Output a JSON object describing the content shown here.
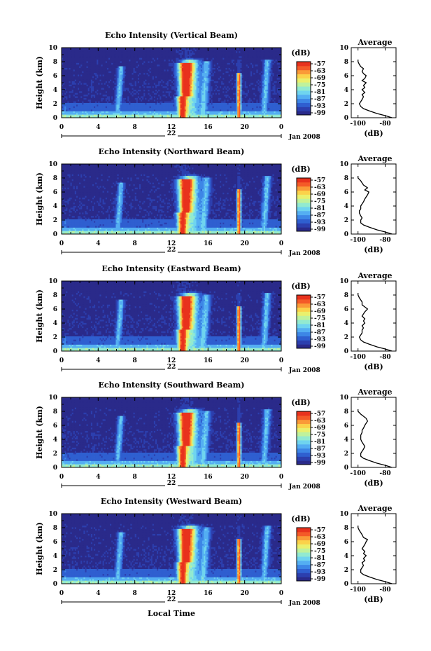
{
  "colormap": [
    "#2a2a8a",
    "#2c3fae",
    "#2f5fd0",
    "#3d86e6",
    "#54aef2",
    "#6fd4ef",
    "#92ead0",
    "#bff29c",
    "#eaf06c",
    "#fbd24a",
    "#fa9a38",
    "#f45a28",
    "#e8321d"
  ],
  "chart_data": [
    {
      "type": "heatmap",
      "title": "Echo Intensity (Vertical Beam)",
      "xlabel": "",
      "ylabel": "Height (km)",
      "x_ticks": [
        "0",
        "4",
        "8",
        "12",
        "16",
        "20",
        "0"
      ],
      "y_ticks": [
        "0",
        "2",
        "4",
        "6",
        "8",
        "10"
      ],
      "date_label": "22",
      "date_suffix": "Jan 2008",
      "colorbar_label": "(dB)",
      "colorbar_ticks": [
        "-57",
        "-63",
        "-69",
        "-75",
        "-81",
        "-87",
        "-93",
        "-99"
      ],
      "avg": {
        "title": "Average",
        "xlabel": "(dB)",
        "x_ticks": [
          "-100",
          "-80"
        ],
        "y_ticks": [
          "0",
          "2",
          "4",
          "6",
          "8",
          "10"
        ],
        "xlim": [
          -105,
          -72
        ],
        "profile_h": [
          0,
          0.3,
          0.6,
          1,
          1.3,
          1.6,
          2,
          2.3,
          2.6,
          3,
          3.3,
          3.6,
          4,
          4.3,
          4.6,
          5,
          5.3,
          5.6,
          6,
          6.3,
          6.6,
          7,
          7.3,
          7.6,
          8,
          8.3
        ],
        "profile_db": [
          -75,
          -80,
          -86,
          -92,
          -96,
          -98,
          -99,
          -98,
          -97,
          -96,
          -97,
          -95,
          -97,
          -95,
          -96,
          -94,
          -97,
          -95,
          -94,
          -96,
          -97,
          -96,
          -98,
          -99,
          -100,
          -100
        ]
      }
    },
    {
      "type": "heatmap",
      "title": "Echo Intensity (Northward Beam)",
      "xlabel": "",
      "ylabel": "Height (km)",
      "x_ticks": [
        "0",
        "4",
        "8",
        "12",
        "16",
        "20",
        "0"
      ],
      "y_ticks": [
        "0",
        "2",
        "4",
        "6",
        "8",
        "10"
      ],
      "date_label": "22",
      "date_suffix": "Jan 2008",
      "colorbar_label": "(dB)",
      "colorbar_ticks": [
        "-57",
        "-63",
        "-69",
        "-75",
        "-81",
        "-87",
        "-93",
        "-99"
      ],
      "avg": {
        "title": "Average",
        "xlabel": "(dB)",
        "x_ticks": [
          "-100",
          "-80"
        ],
        "y_ticks": [
          "0",
          "2",
          "4",
          "6",
          "8",
          "10"
        ],
        "xlim": [
          -105,
          -72
        ],
        "profile_h": [
          0,
          0.3,
          0.6,
          1,
          1.3,
          1.6,
          2,
          2.3,
          2.6,
          3,
          3.3,
          3.6,
          4,
          4.3,
          4.6,
          5,
          5.3,
          5.6,
          6,
          6.3,
          6.6,
          7,
          7.3,
          7.6,
          8,
          8.3
        ],
        "profile_db": [
          -75,
          -80,
          -86,
          -92,
          -96,
          -98,
          -98,
          -97,
          -98,
          -99,
          -99,
          -98,
          -98,
          -97,
          -96,
          -95,
          -94,
          -93,
          -92,
          -95,
          -93,
          -96,
          -97,
          -98,
          -100,
          -100
        ]
      }
    },
    {
      "type": "heatmap",
      "title": "Echo Intensity (Eastward Beam)",
      "xlabel": "",
      "ylabel": "Height (km)",
      "x_ticks": [
        "0",
        "4",
        "8",
        "12",
        "16",
        "20",
        "0"
      ],
      "y_ticks": [
        "0",
        "2",
        "4",
        "6",
        "8",
        "10"
      ],
      "date_label": "22",
      "date_suffix": "Jan 2008",
      "colorbar_label": "(dB)",
      "colorbar_ticks": [
        "-57",
        "-63",
        "-69",
        "-75",
        "-81",
        "-87",
        "-93",
        "-99"
      ],
      "avg": {
        "title": "Average",
        "xlabel": "(dB)",
        "x_ticks": [
          "-100",
          "-80"
        ],
        "y_ticks": [
          "0",
          "2",
          "4",
          "6",
          "8",
          "10"
        ],
        "xlim": [
          -105,
          -72
        ],
        "profile_h": [
          0,
          0.3,
          0.6,
          1,
          1.3,
          1.6,
          2,
          2.3,
          2.6,
          3,
          3.3,
          3.6,
          4,
          4.3,
          4.6,
          5,
          5.3,
          5.6,
          6,
          6.3,
          6.6,
          7,
          7.3,
          7.6,
          8,
          8.3
        ],
        "profile_db": [
          -75,
          -80,
          -86,
          -92,
          -96,
          -98,
          -99,
          -98,
          -97,
          -97,
          -96,
          -97,
          -95,
          -96,
          -95,
          -97,
          -96,
          -95,
          -93,
          -95,
          -97,
          -97,
          -98,
          -99,
          -100,
          -100
        ]
      }
    },
    {
      "type": "heatmap",
      "title": "Echo Intensity (Southward Beam)",
      "xlabel": "",
      "ylabel": "Height (km)",
      "x_ticks": [
        "0",
        "4",
        "8",
        "12",
        "16",
        "20",
        "0"
      ],
      "y_ticks": [
        "0",
        "2",
        "4",
        "6",
        "8",
        "10"
      ],
      "date_label": "22",
      "date_suffix": "Jan 2008",
      "colorbar_label": "(dB)",
      "colorbar_ticks": [
        "-57",
        "-63",
        "-69",
        "-75",
        "-81",
        "-87",
        "-93",
        "-99"
      ],
      "avg": {
        "title": "Average",
        "xlabel": "(dB)",
        "x_ticks": [
          "-100",
          "-80"
        ],
        "y_ticks": [
          "0",
          "2",
          "4",
          "6",
          "8",
          "10"
        ],
        "xlim": [
          -105,
          -72
        ],
        "profile_h": [
          0,
          0.3,
          0.6,
          1,
          1.3,
          1.6,
          2,
          2.3,
          2.6,
          3,
          3.3,
          3.6,
          4,
          4.3,
          4.6,
          5,
          5.3,
          5.6,
          6,
          6.3,
          6.6,
          7,
          7.3,
          7.6,
          8,
          8.3
        ],
        "profile_db": [
          -75,
          -80,
          -86,
          -92,
          -96,
          -98,
          -98,
          -97,
          -96,
          -95,
          -96,
          -97,
          -98,
          -98,
          -98,
          -97,
          -97,
          -96,
          -95,
          -94,
          -93,
          -94,
          -96,
          -98,
          -100,
          -100
        ]
      }
    },
    {
      "type": "heatmap",
      "title": "Echo Intensity (Westward Beam)",
      "xlabel": "Local Time",
      "ylabel": "Height (km)",
      "x_ticks": [
        "0",
        "4",
        "8",
        "12",
        "16",
        "20",
        "0"
      ],
      "y_ticks": [
        "0",
        "2",
        "4",
        "6",
        "8",
        "10"
      ],
      "date_label": "22",
      "date_suffix": "Jan 2008",
      "colorbar_label": "(dB)",
      "colorbar_ticks": [
        "-57",
        "-63",
        "-69",
        "-75",
        "-81",
        "-87",
        "-93",
        "-99"
      ],
      "avg": {
        "title": "Average",
        "xlabel": "(dB)",
        "x_ticks": [
          "-100",
          "-80"
        ],
        "y_ticks": [
          "0",
          "2",
          "4",
          "6",
          "8",
          "10"
        ],
        "xlim": [
          -105,
          -72
        ],
        "profile_h": [
          0,
          0.3,
          0.6,
          1,
          1.3,
          1.6,
          2,
          2.3,
          2.6,
          3,
          3.3,
          3.6,
          4,
          4.3,
          4.6,
          5,
          5.3,
          5.6,
          6,
          6.3,
          6.6,
          7,
          7.3,
          7.6,
          8,
          8.3
        ],
        "profile_db": [
          -75,
          -80,
          -86,
          -92,
          -96,
          -98,
          -98,
          -97,
          -96,
          -97,
          -95,
          -96,
          -94,
          -96,
          -95,
          -97,
          -96,
          -95,
          -94,
          -93,
          -96,
          -97,
          -98,
          -99,
          -100,
          -100
        ]
      }
    }
  ]
}
